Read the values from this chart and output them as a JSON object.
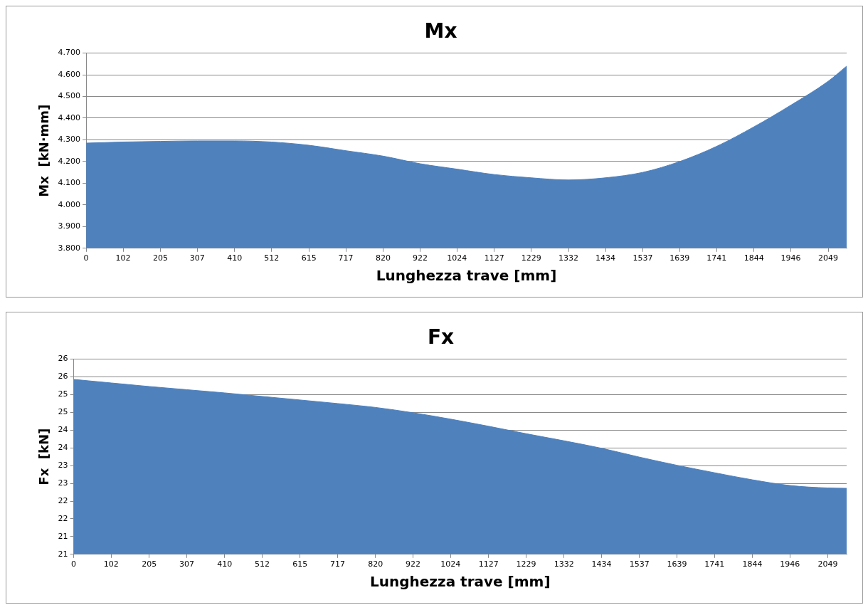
{
  "chart_data": [
    {
      "type": "area",
      "title": "Mx",
      "xlabel": "Lunghezza trave [mm]",
      "ylabel": "Mx  [kN·mm]",
      "grid": "y",
      "x": [
        0,
        102,
        205,
        307,
        410,
        512,
        615,
        717,
        820,
        922,
        1024,
        1127,
        1229,
        1332,
        1434,
        1537,
        1639,
        1741,
        1844,
        1946,
        2049,
        2100
      ],
      "series": [
        {
          "color": "#4f81bd",
          "values": [
            4.285,
            4.29,
            4.293,
            4.295,
            4.295,
            4.29,
            4.275,
            4.25,
            4.225,
            4.19,
            4.165,
            4.14,
            4.125,
            4.115,
            4.125,
            4.15,
            4.2,
            4.27,
            4.36,
            4.46,
            4.57,
            4.64
          ]
        }
      ],
      "xlim": [
        0,
        2100
      ],
      "xticks": [
        0,
        102,
        205,
        307,
        410,
        512,
        615,
        717,
        820,
        922,
        1024,
        1127,
        1229,
        1332,
        1434,
        1537,
        1639,
        1741,
        1844,
        1946,
        2049
      ],
      "ylim": [
        3.8,
        4.7
      ],
      "yticks": [
        {
          "value": 3.8,
          "label": "3.800"
        },
        {
          "value": 3.9,
          "label": "3.900"
        },
        {
          "value": 4.0,
          "label": "4.000"
        },
        {
          "value": 4.1,
          "label": "4.100"
        },
        {
          "value": 4.2,
          "label": "4.200"
        },
        {
          "value": 4.3,
          "label": "4.300"
        },
        {
          "value": 4.4,
          "label": "4.400"
        },
        {
          "value": 4.5,
          "label": "4.500"
        },
        {
          "value": 4.6,
          "label": "4.600"
        },
        {
          "value": 4.7,
          "label": "4.700"
        }
      ]
    },
    {
      "type": "area",
      "title": "Fx",
      "xlabel": "Lunghezza trave [mm]",
      "ylabel": "Fx  [kN]",
      "grid": "y",
      "x": [
        0,
        102,
        205,
        307,
        410,
        512,
        615,
        717,
        820,
        922,
        1024,
        1127,
        1229,
        1332,
        1434,
        1537,
        1639,
        1741,
        1844,
        1946,
        2049,
        2100
      ],
      "series": [
        {
          "color": "#4f81bd",
          "values": [
            25.93,
            25.83,
            25.73,
            25.64,
            25.55,
            25.45,
            25.35,
            25.25,
            25.14,
            24.99,
            24.81,
            24.61,
            24.4,
            24.2,
            23.99,
            23.74,
            23.51,
            23.3,
            23.1,
            22.94,
            22.87,
            22.86
          ]
        }
      ],
      "xlim": [
        0,
        2100
      ],
      "xticks": [
        0,
        102,
        205,
        307,
        410,
        512,
        615,
        717,
        820,
        922,
        1024,
        1127,
        1229,
        1332,
        1434,
        1537,
        1639,
        1741,
        1844,
        1946,
        2049
      ],
      "ylim": [
        21,
        26.5
      ],
      "yticks": [
        21,
        {
          "value": 21.5,
          "label": "21"
        },
        22,
        {
          "value": 22.5,
          "label": "22"
        },
        23,
        {
          "value": 23.5,
          "label": "23"
        },
        24,
        {
          "value": 24.5,
          "label": "24"
        },
        25,
        {
          "value": 25.5,
          "label": "25"
        },
        26,
        {
          "value": 26.5,
          "label": "26"
        }
      ]
    }
  ]
}
